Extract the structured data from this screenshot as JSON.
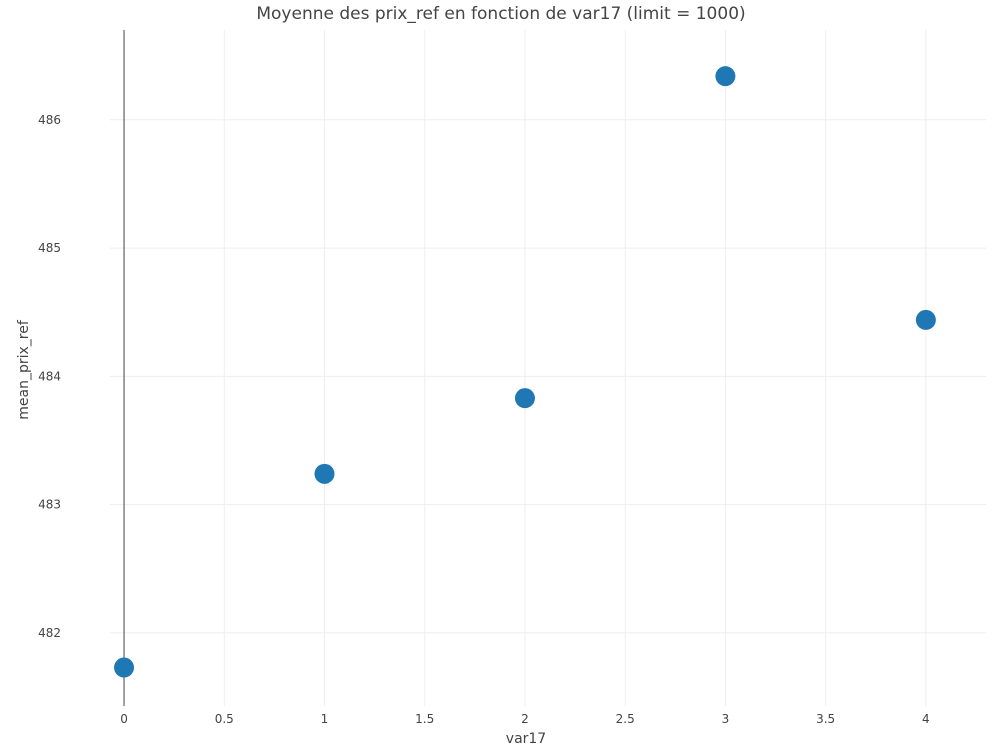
{
  "chart_data": {
    "type": "scatter",
    "title": "Moyenne des prix_ref en fonction de var17 (limit = 1000)",
    "xlabel": "var17",
    "ylabel": "mean_prix_ref",
    "x": [
      0,
      1,
      2,
      3,
      4
    ],
    "y": [
      481.73,
      483.24,
      483.83,
      486.34,
      484.44
    ],
    "xlim": [
      -0.07,
      4.3
    ],
    "ylim": [
      481.43,
      486.7
    ],
    "xticks": [
      0,
      0.5,
      1,
      1.5,
      2,
      2.5,
      3,
      3.5,
      4
    ],
    "xtick_labels": [
      "0",
      "0.5",
      "1",
      "1.5",
      "2",
      "2.5",
      "3",
      "3.5",
      "4"
    ],
    "yticks": [
      482,
      483,
      484,
      485,
      486
    ],
    "ytick_labels": [
      "482",
      "483",
      "484",
      "485",
      "486"
    ],
    "grid": true,
    "marker_color": "#1f77b4"
  }
}
